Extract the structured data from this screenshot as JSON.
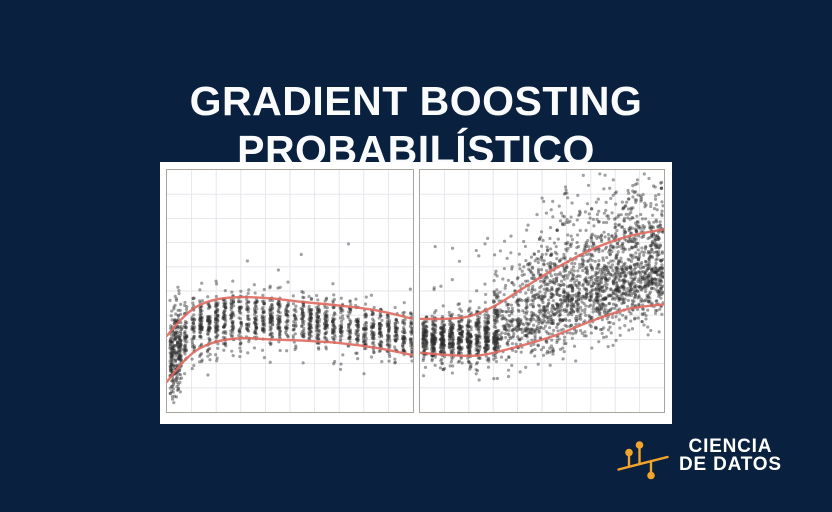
{
  "page": {
    "background_color": "#09203E"
  },
  "title": {
    "line1": "GRADIENT BOOSTING",
    "line2": "PROBABILÍSTICO",
    "text_color": "#FAFBFD"
  },
  "brand": {
    "name_line1": "CIENCIA",
    "name_line2": "DE DATOS",
    "icon": "stem-plot-icon",
    "icon_color": "#F2A42B",
    "text_color": "#FFFFFF"
  },
  "figure": {
    "background_color": "#FFFFFF",
    "panel_border_color": "#A9A49E",
    "grid_color": "#E4E4EA",
    "point_color": "#2F2F2F",
    "point_alpha": 0.45,
    "point_radius": 1.6,
    "curve_color": "#E0695F",
    "curve_width": 2.4
  },
  "chart_data": [
    {
      "type": "scatter",
      "panel": "left",
      "title": "",
      "xlabel": "",
      "ylabel": "",
      "x_range": [
        0,
        1
      ],
      "y_range": [
        0,
        1
      ],
      "grid": true,
      "ticks_visible": false,
      "description": "Flat heteroscedastic point cloud; band funnels down at the left edge; two salmon quantile curves",
      "n_points": 1650,
      "seed": 1337,
      "x_groups": [
        {
          "frac": 0.17,
          "mode": "uniform",
          "x0": 0.012,
          "x1": 0.06,
          "sd_mult": 1.5,
          "y_shift": 0.025
        },
        {
          "frac": 0.83,
          "mode": "stripes",
          "x0": 0.075,
          "x1": 0.995,
          "stripes": 30,
          "jitter": 0.006,
          "sd_mult": 1.0,
          "y_shift": 0,
          "bias": 1
        }
      ],
      "sd_frac": 0.33,
      "skew_up": 1.0,
      "skew_from": 2,
      "outliers_up": {
        "frac": 0.004,
        "min": 0.06,
        "range": 0.3
      },
      "outliers_down": {
        "frac": 0.005,
        "min": 0.02,
        "range": 0.12
      },
      "quantiles": {
        "upper": [
          [
            0,
            0.685
          ],
          [
            0.06,
            0.615
          ],
          [
            0.12,
            0.565
          ],
          [
            0.2,
            0.535
          ],
          [
            0.3,
            0.525
          ],
          [
            0.42,
            0.53
          ],
          [
            0.55,
            0.545
          ],
          [
            0.7,
            0.56
          ],
          [
            0.85,
            0.58
          ],
          [
            1,
            0.615
          ]
        ],
        "lower": [
          [
            0,
            0.875
          ],
          [
            0.06,
            0.8
          ],
          [
            0.12,
            0.745
          ],
          [
            0.2,
            0.71
          ],
          [
            0.3,
            0.695
          ],
          [
            0.42,
            0.7
          ],
          [
            0.55,
            0.705
          ],
          [
            0.7,
            0.715
          ],
          [
            0.85,
            0.735
          ],
          [
            1,
            0.765
          ]
        ]
      }
    },
    {
      "type": "scatter",
      "panel": "right",
      "title": "",
      "xlabel": "",
      "ylabel": "",
      "x_range": [
        0,
        1
      ],
      "y_range": [
        0,
        1
      ],
      "grid": true,
      "ticks_visible": false,
      "description": "Cloud flat at left then rising to upper right with widening spread; two salmon quantile curves",
      "n_points": 2850,
      "seed": 2024,
      "x_groups": [
        {
          "frac": 0.3,
          "mode": "stripes",
          "x0": 0.02,
          "x1": 0.31,
          "stripes": 9,
          "jitter": 0.009,
          "sd_mult": 1.0,
          "y_shift": 0.01,
          "bias": 1
        },
        {
          "frac": 0.7,
          "mode": "stripes",
          "x0": 0.33,
          "x1": 0.995,
          "stripes": 26,
          "jitter": 0.012,
          "sd_mult": 1.05,
          "y_shift": 0,
          "bias": 0.8
        }
      ],
      "sd_frac": 0.32,
      "skew_up": 1.65,
      "skew_from": 0.3,
      "outliers_up": {
        "frac": 0.02,
        "min": 0.04,
        "range": 0.26
      },
      "outliers_down": {
        "frac": 0.006,
        "min": 0.02,
        "range": 0.1
      },
      "quantiles": {
        "upper": [
          [
            0,
            0.615
          ],
          [
            0.1,
            0.615
          ],
          [
            0.2,
            0.605
          ],
          [
            0.3,
            0.565
          ],
          [
            0.42,
            0.49
          ],
          [
            0.55,
            0.41
          ],
          [
            0.7,
            0.33
          ],
          [
            0.85,
            0.275
          ],
          [
            1,
            0.245
          ]
        ],
        "lower": [
          [
            0,
            0.755
          ],
          [
            0.12,
            0.765
          ],
          [
            0.25,
            0.765
          ],
          [
            0.4,
            0.73
          ],
          [
            0.55,
            0.685
          ],
          [
            0.7,
            0.625
          ],
          [
            0.85,
            0.575
          ],
          [
            1,
            0.555
          ]
        ]
      }
    }
  ]
}
